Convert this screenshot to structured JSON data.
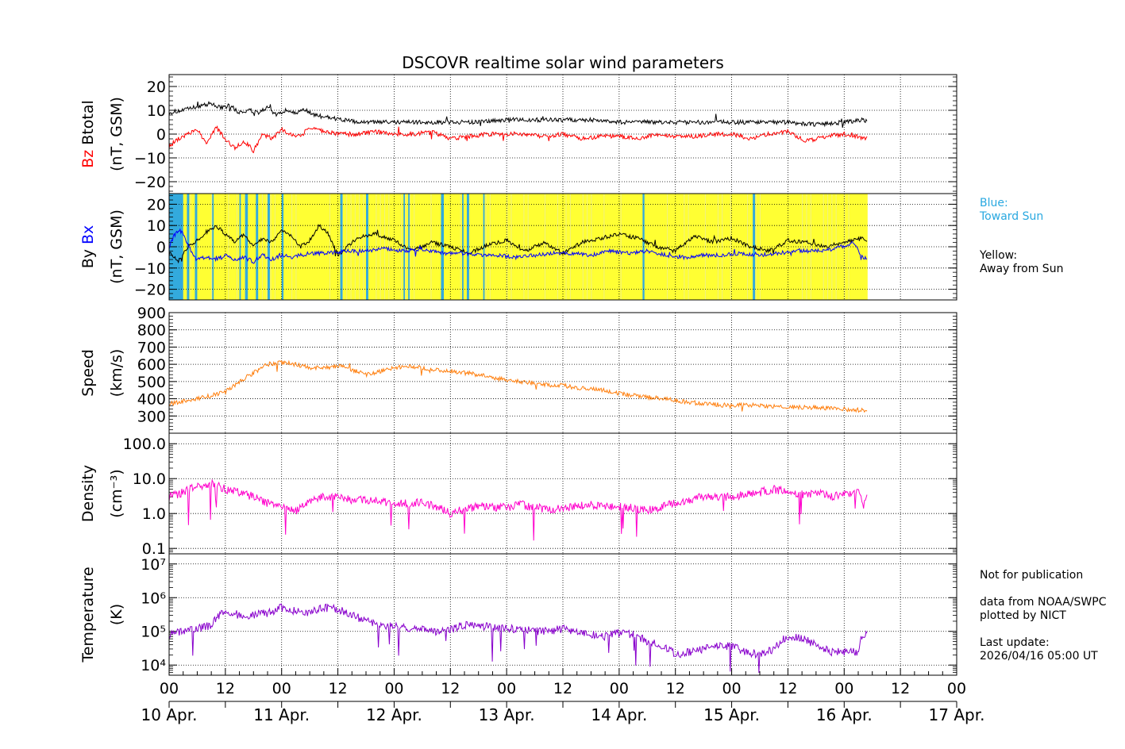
{
  "title": "DSCOVR realtime solar wind parameters",
  "colors": {
    "black": "#000000",
    "bz": "#ff0000",
    "bx": "#0000ff",
    "speed": "#ff7f0e",
    "density": "#ff00cc",
    "temperature": "#8800cc",
    "toward_sun_shade": "#33aadd",
    "away_from_sun_shade": "#ffff33",
    "legend_blue": "#29a8e0"
  },
  "x_axis": {
    "range_hours": [
      0,
      168
    ],
    "tick_labels": [
      "00",
      "12",
      "00",
      "12",
      "00",
      "12",
      "00",
      "12",
      "00",
      "12",
      "00",
      "12",
      "00",
      "12",
      "00"
    ],
    "day_labels": [
      "10 Apr.",
      "11 Apr.",
      "12 Apr.",
      "13 Apr.",
      "14 Apr.",
      "15 Apr.",
      "16 Apr.",
      "17 Apr."
    ]
  },
  "legend": {
    "blue_title": "Blue:",
    "blue_text": "Toward Sun",
    "yellow_title": "Yellow:",
    "yellow_text": "Away from Sun"
  },
  "notes": {
    "not_for_publication": "Not for publication",
    "source_line1": "data from NOAA/SWPC",
    "source_line2": "plotted by NICT",
    "last_update_label": "Last update:",
    "last_update_value": "2026/04/16 05:00 UT"
  },
  "chart_data": [
    {
      "id": "btotal_bz",
      "type": "line",
      "ylabel_parts": [
        "Bz",
        "Btotal"
      ],
      "ylabel_unit": "(nT, GSM)",
      "ylim": [
        -25,
        25
      ],
      "yticks": [
        20,
        10,
        0,
        -10,
        -20
      ],
      "ytick_labels": [
        "20",
        "10",
        "0",
        "−10",
        "−20"
      ],
      "series": [
        {
          "name": "Btotal",
          "color": "#000000",
          "x": [
            0,
            3,
            5,
            7,
            9,
            11,
            13,
            15,
            17,
            19,
            21,
            23,
            25,
            27,
            29,
            31,
            34,
            37,
            40,
            44,
            48,
            52,
            56,
            60,
            66,
            72,
            78,
            84,
            90,
            96,
            102,
            108,
            114,
            120,
            126,
            132,
            138,
            144,
            148,
            149
          ],
          "y": [
            9,
            10,
            11,
            12,
            13,
            11,
            12,
            9,
            10,
            9,
            11,
            8,
            10,
            9,
            10,
            8,
            7,
            6,
            5,
            5,
            5,
            5,
            5,
            5,
            5,
            6,
            6,
            6,
            6,
            5,
            5,
            5,
            5,
            5,
            5,
            5,
            4,
            5,
            6,
            6
          ]
        },
        {
          "name": "Bz",
          "color": "#ff0000",
          "x": [
            0,
            2,
            4,
            6,
            8,
            10,
            12,
            14,
            16,
            18,
            20,
            22,
            24,
            26,
            28,
            30,
            33,
            36,
            40,
            44,
            48,
            52,
            56,
            60,
            64,
            68,
            72,
            76,
            80,
            84,
            88,
            92,
            96,
            100,
            104,
            108,
            112,
            116,
            120,
            124,
            128,
            132,
            136,
            140,
            144,
            147,
            148,
            149
          ],
          "y": [
            -5,
            -2,
            0,
            2,
            -4,
            3,
            -2,
            -6,
            -3,
            -7,
            0,
            -2,
            2,
            0,
            -1,
            3,
            1,
            0,
            0,
            1,
            0,
            0,
            1,
            -2,
            -1,
            0,
            0,
            0,
            -1,
            0,
            -2,
            -1,
            -1,
            -2,
            0,
            -1,
            -1,
            0,
            0,
            -2,
            0,
            1,
            -3,
            -1,
            0,
            -1,
            -2,
            -1
          ]
        }
      ]
    },
    {
      "id": "bx_by",
      "type": "line",
      "ylabel_parts": [
        "By",
        "Bx"
      ],
      "ylabel_unit": "(nT, GSM)",
      "ylim": [
        -25,
        25
      ],
      "yticks": [
        20,
        10,
        0,
        -10,
        -20
      ],
      "ytick_labels": [
        "20",
        "10",
        "0",
        "−10",
        "−20"
      ],
      "shading_range_hours": [
        0,
        149
      ],
      "toward_sun_intervals": [
        [
          0,
          3
        ],
        [
          3.8,
          4.3
        ],
        [
          5.5,
          6
        ],
        [
          9.2,
          9.5
        ],
        [
          15,
          15.3
        ],
        [
          16.2,
          16.8
        ],
        [
          18.5,
          19
        ],
        [
          21,
          21.5
        ],
        [
          24,
          24.4
        ],
        [
          36.5,
          37
        ],
        [
          42,
          42.5
        ],
        [
          50,
          50.3
        ],
        [
          51,
          51.3
        ],
        [
          58,
          58.6
        ],
        [
          62.5,
          62.8
        ],
        [
          63.5,
          64
        ],
        [
          67,
          67.3
        ],
        [
          101,
          101.4
        ],
        [
          124.5,
          125
        ]
      ],
      "series": [
        {
          "name": "By",
          "color": "#000000",
          "x": [
            0,
            2,
            4,
            6,
            8,
            10,
            12,
            14,
            16,
            18,
            20,
            22,
            24,
            26,
            28,
            30,
            32,
            34,
            36,
            40,
            44,
            48,
            52,
            56,
            60,
            64,
            68,
            72,
            76,
            80,
            84,
            88,
            92,
            96,
            100,
            104,
            108,
            112,
            116,
            120,
            124,
            128,
            132,
            136,
            140,
            144,
            146,
            148,
            149
          ],
          "y": [
            -3,
            -6,
            0,
            3,
            7,
            10,
            6,
            2,
            6,
            0,
            4,
            2,
            8,
            5,
            0,
            3,
            10,
            6,
            -4,
            4,
            6,
            3,
            -2,
            2,
            0,
            -3,
            1,
            3,
            -2,
            2,
            -3,
            2,
            4,
            6,
            4,
            0,
            -2,
            5,
            2,
            4,
            0,
            -2,
            3,
            2,
            0,
            2,
            3,
            4,
            3
          ]
        },
        {
          "name": "Bx",
          "color": "#0000ff",
          "x": [
            0,
            1,
            2,
            3,
            4,
            5,
            6,
            8,
            10,
            12,
            14,
            16,
            18,
            20,
            22,
            24,
            26,
            28,
            30,
            34,
            38,
            42,
            46,
            50,
            54,
            58,
            62,
            66,
            70,
            74,
            78,
            82,
            86,
            90,
            94,
            98,
            102,
            106,
            110,
            114,
            118,
            122,
            126,
            130,
            134,
            138,
            142,
            146,
            147,
            148,
            149
          ],
          "y": [
            0,
            5,
            8,
            6,
            1,
            -4,
            -6,
            -5,
            -6,
            -4,
            -6,
            -5,
            -7,
            -4,
            -6,
            -4,
            -5,
            -4,
            -3,
            -3,
            -2,
            -2,
            -1,
            -2,
            -1,
            -3,
            -3,
            -4,
            -4,
            -5,
            -4,
            -3,
            -3,
            -4,
            -2,
            -3,
            -2,
            -4,
            -5,
            -4,
            -4,
            -3,
            -4,
            -3,
            -2,
            -2,
            -1,
            2,
            -2,
            -5,
            -5
          ]
        }
      ]
    },
    {
      "id": "speed",
      "type": "line",
      "ylabel_parts": [
        "Speed"
      ],
      "ylabel_unit": "(km/s)",
      "ylim": [
        200,
        900
      ],
      "yticks": [
        900,
        800,
        700,
        600,
        500,
        400,
        300
      ],
      "ytick_labels": [
        "900",
        "800",
        "700",
        "600",
        "500",
        "400",
        "300"
      ],
      "series": [
        {
          "name": "Speed",
          "color": "#ff7f0e",
          "x": [
            0,
            3,
            6,
            9,
            12,
            15,
            18,
            21,
            24,
            27,
            30,
            33,
            36,
            39,
            42,
            45,
            48,
            51,
            54,
            57,
            60,
            63,
            66,
            69,
            72,
            75,
            78,
            81,
            84,
            87,
            90,
            93,
            96,
            99,
            102,
            105,
            108,
            111,
            114,
            117,
            120,
            123,
            126,
            129,
            132,
            135,
            138,
            141,
            144,
            147,
            149
          ],
          "y": [
            370,
            385,
            400,
            420,
            440,
            500,
            550,
            600,
            610,
            600,
            580,
            580,
            590,
            570,
            540,
            560,
            580,
            590,
            580,
            570,
            560,
            550,
            540,
            520,
            510,
            500,
            490,
            480,
            480,
            460,
            460,
            450,
            430,
            420,
            410,
            400,
            390,
            380,
            370,
            365,
            360,
            365,
            360,
            355,
            355,
            350,
            350,
            345,
            340,
            335,
            330
          ]
        }
      ]
    },
    {
      "id": "density",
      "type": "line",
      "scale": "log",
      "ylabel_parts": [
        "Density"
      ],
      "ylabel_unit": "(cm⁻³)",
      "ylim": [
        0.07,
        200
      ],
      "yticks": [
        100,
        10,
        1,
        0.1
      ],
      "ytick_labels": [
        "100.0",
        "10.0",
        "1.0",
        "0.1"
      ],
      "series": [
        {
          "name": "Density",
          "color": "#ff00cc",
          "x": [
            0,
            3,
            6,
            9,
            12,
            15,
            18,
            21,
            24,
            27,
            30,
            33,
            36,
            39,
            42,
            45,
            48,
            51,
            54,
            57,
            60,
            63,
            66,
            69,
            72,
            75,
            78,
            81,
            84,
            87,
            90,
            93,
            96,
            99,
            102,
            105,
            108,
            111,
            114,
            117,
            120,
            123,
            126,
            129,
            132,
            135,
            138,
            141,
            144,
            146,
            147,
            148,
            149
          ],
          "y": [
            3,
            4,
            6,
            7,
            5,
            4,
            3,
            2,
            1.5,
            1.2,
            2,
            3,
            3,
            2.5,
            2.5,
            2.2,
            2,
            2,
            2,
            1.5,
            1,
            1.3,
            1.6,
            1.5,
            1.5,
            1.8,
            1.5,
            1.3,
            1.5,
            1.6,
            1.8,
            1.5,
            1.6,
            1.4,
            1.2,
            1.5,
            2,
            2.5,
            3,
            3,
            3,
            3.5,
            4,
            5,
            4,
            3.5,
            4,
            3,
            3.5,
            4,
            4,
            1.5,
            3.5
          ]
        }
      ]
    },
    {
      "id": "temperature",
      "type": "line",
      "scale": "log",
      "ylabel_parts": [
        "Temperature"
      ],
      "ylabel_unit": "(K)",
      "ylim": [
        5000,
        20000000
      ],
      "yticks": [
        10000000,
        1000000,
        100000,
        10000
      ],
      "ytick_labels": [
        "10⁷",
        "10⁶",
        "10⁵",
        "10⁴"
      ],
      "series": [
        {
          "name": "Temperature",
          "color": "#8800cc",
          "x": [
            0,
            3,
            6,
            9,
            12,
            15,
            18,
            21,
            24,
            27,
            30,
            33,
            36,
            39,
            42,
            45,
            48,
            51,
            54,
            57,
            60,
            63,
            66,
            69,
            72,
            75,
            78,
            81,
            84,
            87,
            90,
            93,
            96,
            99,
            102,
            105,
            108,
            111,
            114,
            117,
            120,
            123,
            126,
            129,
            132,
            135,
            138,
            141,
            144,
            147,
            148,
            149
          ],
          "y": [
            80000,
            100000,
            120000,
            150000,
            400000,
            300000,
            300000,
            350000,
            500000,
            400000,
            350000,
            500000,
            450000,
            300000,
            200000,
            150000,
            150000,
            130000,
            120000,
            100000,
            120000,
            150000,
            150000,
            130000,
            120000,
            120000,
            100000,
            100000,
            120000,
            100000,
            80000,
            70000,
            90000,
            80000,
            50000,
            40000,
            20000,
            25000,
            30000,
            40000,
            35000,
            25000,
            20000,
            30000,
            70000,
            60000,
            40000,
            25000,
            25000,
            25000,
            80000,
            90000
          ]
        }
      ]
    }
  ]
}
